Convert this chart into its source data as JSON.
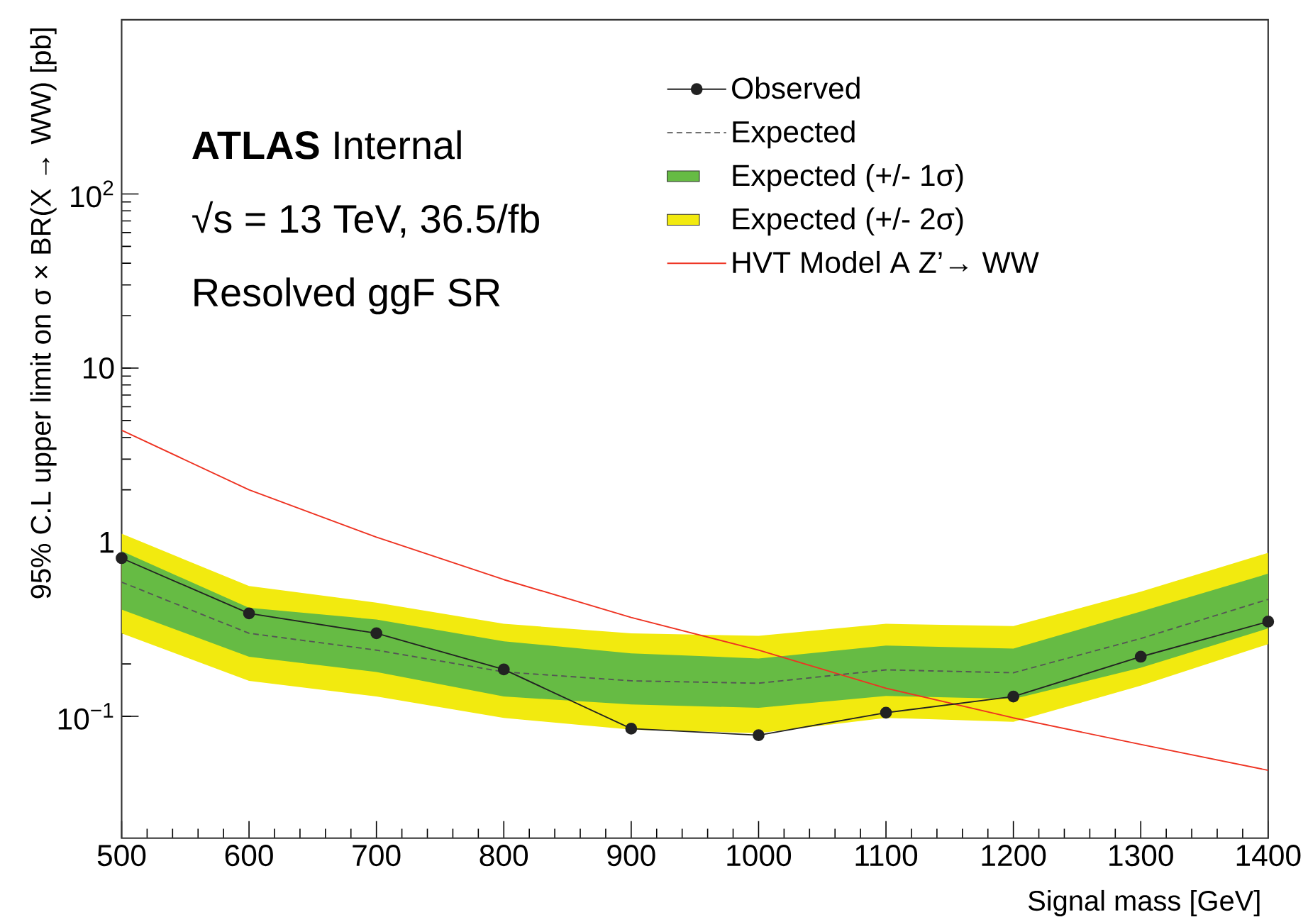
{
  "chart_data": {
    "type": "line",
    "xlabel": "Signal mass [GeV]",
    "ylabel": "95% C.L upper limit on σ × BR(X → WW)  [pb]",
    "x": [
      500,
      600,
      700,
      800,
      900,
      1000,
      1100,
      1200,
      1300,
      1400
    ],
    "xlim": [
      500,
      1400
    ],
    "xticks": [
      500,
      600,
      700,
      800,
      900,
      1000,
      1100,
      1200,
      1300,
      1400
    ],
    "ylim": [
      0.02,
      1000
    ],
    "yticks": [
      {
        "value": 0.1,
        "label": "10$^{−1}$"
      },
      1,
      10,
      {
        "value": 100,
        "label": "10$^{2}$"
      }
    ],
    "log": "y",
    "legend": "top right",
    "annotations": [
      "**ATLAS** Internal",
      "√s = 13 TeV, 36.5/fb",
      "Resolved ggF SR"
    ],
    "series": [
      {
        "name": "Observed",
        "color": "#222222",
        "marker": "circle",
        "values": [
          0.81,
          0.39,
          0.3,
          0.186,
          0.085,
          0.078,
          0.105,
          0.13,
          0.22,
          0.35
        ]
      },
      {
        "name": "Expected",
        "color": "#555555",
        "line_style": "dashed",
        "values": [
          0.59,
          0.3,
          0.24,
          0.18,
          0.16,
          0.155,
          0.185,
          0.178,
          0.28,
          0.47
        ]
      },
      {
        "name": "Expected (+/- 1σ)",
        "type": "area",
        "color": "#66bb44",
        "values": [
          null,
          null,
          null,
          null,
          null,
          null,
          null,
          null,
          null,
          null
        ],
        "lower": [
          0.41,
          0.22,
          0.18,
          0.13,
          0.117,
          0.112,
          0.131,
          0.126,
          0.19,
          0.32
        ],
        "upper": [
          0.89,
          0.42,
          0.36,
          0.27,
          0.23,
          0.215,
          0.255,
          0.245,
          0.4,
          0.66
        ]
      },
      {
        "name": "Expected (+/- 2σ)",
        "type": "area",
        "color": "#f2ea0f",
        "values": [
          null,
          null,
          null,
          null,
          null,
          null,
          null,
          null,
          null,
          null
        ],
        "lower": [
          0.3,
          0.16,
          0.13,
          0.098,
          0.084,
          0.08,
          0.098,
          0.093,
          0.15,
          0.26
        ],
        "upper": [
          1.12,
          0.56,
          0.45,
          0.34,
          0.3,
          0.29,
          0.34,
          0.33,
          0.52,
          0.87
        ]
      },
      {
        "name": "HVT Model A Z’→ WW",
        "color": "#ee3322",
        "values": [
          4.4,
          2.0,
          1.07,
          0.61,
          0.37,
          0.24,
          0.145,
          0.098,
          0.069,
          0.049
        ]
      }
    ]
  }
}
